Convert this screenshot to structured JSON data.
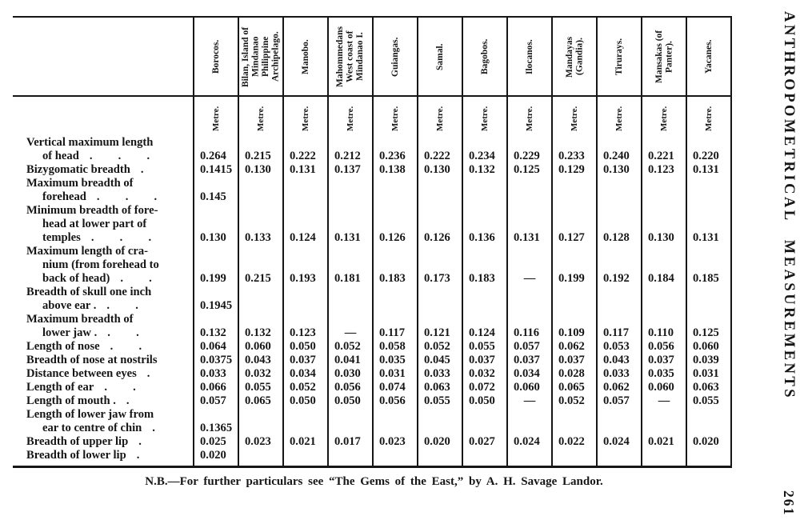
{
  "page": {
    "running_head": "ANTHROPOMETRICAL MEASUREMENTS",
    "page_number": "261",
    "footnote": "N.B.—For further particulars see “The Gems of the East,” by A. H. Savage Landor."
  },
  "table": {
    "unit_label": "Metre.",
    "columns": [
      "Borocos.",
      "Bilan, Island of Mindanao Philippine Archipelago.",
      "Manobo.",
      "Mahommedans West coast of Mindanao I.",
      "Guiangas.",
      "Samal.",
      "Bagobos.",
      "Ilocanos.",
      "Mandayas (Gandia).",
      "Tirurays.",
      "Mansakas (of Panter).",
      "Yacanes."
    ],
    "rows": [
      {
        "label_lines": [
          "Vertical maximum length",
          "of head"
        ],
        "leader": ".  .  .",
        "values": [
          "0.264",
          "0.215",
          "0.222",
          "0.212",
          "0.236",
          "0.222",
          "0.234",
          "0.229",
          "0.233",
          "0.240",
          "0.221",
          "0.220"
        ]
      },
      {
        "label_lines": [
          "Bizygomatic breadth"
        ],
        "leader": ".",
        "values": [
          "0.1415",
          "0.130",
          "0.131",
          "0.137",
          "0.138",
          "0.130",
          "0.132",
          "0.125",
          "0.129",
          "0.130",
          "0.123",
          "0.131"
        ]
      },
      {
        "label_lines": [
          "Maximum  breadth  of",
          "forehead"
        ],
        "leader": ".  .  .",
        "values": [
          "0.145",
          "",
          "",
          "",
          "",
          "",
          "",
          "",
          "",
          "",
          "",
          ""
        ]
      },
      {
        "label_lines": [
          "Minimum breadth of fore-",
          "head at lower part of",
          "temples"
        ],
        "leader": ".  .  .",
        "values": [
          "0.130",
          "0.133",
          "0.124",
          "0.131",
          "0.126",
          "0.126",
          "0.136",
          "0.131",
          "0.127",
          "0.128",
          "0.130",
          "0.131"
        ]
      },
      {
        "label_lines": [
          "Maximum length of cra-",
          "nium (from forehead to",
          "back of head)"
        ],
        "leader": ".  .",
        "values": [
          "0.199",
          "0.215",
          "0.193",
          "0.181",
          "0.183",
          "0.173",
          "0.183",
          "—",
          "0.199",
          "0.192",
          "0.184",
          "0.185"
        ]
      },
      {
        "label_lines": [
          "Breadth of skull one inch",
          "above ear ."
        ],
        "leader": ".  .",
        "values": [
          "0.1945",
          "",
          "",
          "",
          "",
          "",
          "",
          "",
          "",
          "",
          "",
          ""
        ]
      },
      {
        "label_lines": [
          "Maximum  breadth  of",
          "lower jaw ."
        ],
        "leader": ".  .",
        "values": [
          "0.132",
          "0.132",
          "0.123",
          "—",
          "0.117",
          "0.121",
          "0.124",
          "0.116",
          "0.109",
          "0.117",
          "0.110",
          "0.125"
        ]
      },
      {
        "label_lines": [
          "Length of nose"
        ],
        "leader": ".  .",
        "values": [
          "0.064",
          "0.060",
          "0.050",
          "0.052",
          "0.058",
          "0.052",
          "0.055",
          "0.057",
          "0.062",
          "0.053",
          "0.056",
          "0.060"
        ]
      },
      {
        "label_lines": [
          "Breadth of nose at nostrils"
        ],
        "leader": "",
        "values": [
          "0.0375",
          "0.043",
          "0.037",
          "0.041",
          "0.035",
          "0.045",
          "0.037",
          "0.037",
          "0.037",
          "0.043",
          "0.037",
          "0.039"
        ]
      },
      {
        "label_lines": [
          "Distance between eyes"
        ],
        "leader": ".",
        "values": [
          "0.033",
          "0.032",
          "0.034",
          "0.030",
          "0.031",
          "0.033",
          "0.032",
          "0.034",
          "0.028",
          "0.033",
          "0.035",
          "0.031"
        ]
      },
      {
        "label_lines": [
          "Length of ear"
        ],
        "leader": ".  .",
        "values": [
          "0.066",
          "0.055",
          "0.052",
          "0.056",
          "0.074",
          "0.063",
          "0.072",
          "0.060",
          "0.065",
          "0.062",
          "0.060",
          "0.063"
        ]
      },
      {
        "label_lines": [
          "Length of mouth ."
        ],
        "leader": ".",
        "values": [
          "0.057",
          "0.065",
          "0.050",
          "0.050",
          "0.056",
          "0.055",
          "0.050",
          "—",
          "0.052",
          "0.057",
          "—",
          "0.055"
        ]
      },
      {
        "label_lines": [
          "Length of lower jaw from",
          "ear to centre of chin"
        ],
        "leader": ".",
        "values": [
          "0.1365",
          "",
          "",
          "",
          "",
          "",
          "",
          "",
          "",
          "",
          "",
          ""
        ]
      },
      {
        "label_lines": [
          "Breadth of upper lip"
        ],
        "leader": ".",
        "values": [
          "0.025",
          "0.023",
          "0.021",
          "0.017",
          "0.023",
          "0.020",
          "0.027",
          "0.024",
          "0.022",
          "0.024",
          "0.021",
          "0.020"
        ]
      },
      {
        "label_lines": [
          "Breadth of lower lip"
        ],
        "leader": ".",
        "values": [
          "0.020",
          "",
          "",
          "",
          "",
          "",
          "",
          "",
          "",
          "",
          "",
          ""
        ]
      }
    ]
  }
}
